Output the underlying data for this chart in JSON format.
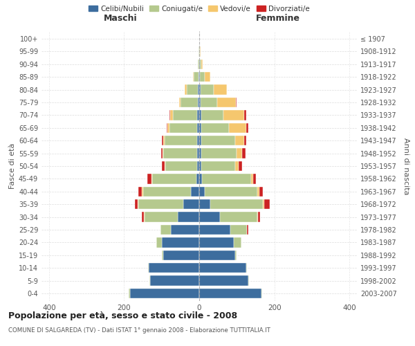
{
  "age_groups": [
    "0-4",
    "5-9",
    "10-14",
    "15-19",
    "20-24",
    "25-29",
    "30-34",
    "35-39",
    "40-44",
    "45-49",
    "50-54",
    "55-59",
    "60-64",
    "65-69",
    "70-74",
    "75-79",
    "80-84",
    "85-89",
    "90-94",
    "95-99",
    "100+"
  ],
  "birth_years": [
    "2003-2007",
    "1998-2002",
    "1993-1997",
    "1988-1992",
    "1983-1987",
    "1978-1982",
    "1973-1977",
    "1968-1972",
    "1963-1967",
    "1958-1962",
    "1953-1957",
    "1948-1952",
    "1943-1947",
    "1938-1942",
    "1933-1937",
    "1928-1932",
    "1923-1927",
    "1918-1922",
    "1913-1917",
    "1908-1912",
    "≤ 1907"
  ],
  "male": {
    "celibi": [
      185,
      130,
      135,
      95,
      100,
      75,
      58,
      42,
      22,
      8,
      5,
      5,
      5,
      5,
      5,
      4,
      3,
      2,
      0,
      0,
      0
    ],
    "coniugati": [
      2,
      2,
      2,
      5,
      15,
      28,
      88,
      120,
      128,
      118,
      85,
      90,
      88,
      75,
      65,
      45,
      30,
      12,
      3,
      1,
      0
    ],
    "vedovi": [
      0,
      0,
      0,
      0,
      0,
      0,
      1,
      2,
      2,
      2,
      2,
      2,
      3,
      5,
      8,
      5,
      5,
      2,
      0,
      0,
      0
    ],
    "divorziati": [
      0,
      0,
      0,
      0,
      0,
      1,
      5,
      8,
      10,
      10,
      8,
      4,
      3,
      2,
      2,
      0,
      0,
      0,
      0,
      0,
      0
    ]
  },
  "female": {
    "nubili": [
      165,
      130,
      125,
      95,
      92,
      82,
      55,
      30,
      15,
      8,
      5,
      5,
      5,
      5,
      5,
      3,
      3,
      2,
      1,
      0,
      0
    ],
    "coniugate": [
      2,
      2,
      2,
      5,
      20,
      45,
      100,
      140,
      140,
      130,
      90,
      95,
      90,
      75,
      60,
      45,
      35,
      12,
      4,
      2,
      0
    ],
    "vedove": [
      0,
      0,
      0,
      0,
      0,
      1,
      2,
      3,
      5,
      5,
      10,
      15,
      25,
      45,
      55,
      50,
      35,
      15,
      5,
      1,
      0
    ],
    "divorziate": [
      0,
      0,
      0,
      0,
      0,
      2,
      5,
      15,
      10,
      8,
      10,
      8,
      5,
      5,
      5,
      2,
      0,
      0,
      0,
      0,
      0
    ]
  },
  "colors": {
    "celibi_nubili": "#3d6d9e",
    "coniugati": "#b5c98e",
    "vedovi": "#f5c76e",
    "divorziati": "#cc2222"
  },
  "xlim": 420,
  "title": "Popolazione per età, sesso e stato civile - 2008",
  "subtitle": "COMUNE DI SALGAREDA (TV) - Dati ISTAT 1° gennaio 2008 - Elaborazione TUTTITALIA.IT",
  "ylabel": "Fasce di età",
  "ylabel_right": "Anni di nascita",
  "legend_labels": [
    "Celibi/Nubili",
    "Coniugati/e",
    "Vedovi/e",
    "Divorziati/e"
  ],
  "maschi_label": "Maschi",
  "femmine_label": "Femmine",
  "background_color": "#ffffff",
  "grid_color": "#cccccc"
}
